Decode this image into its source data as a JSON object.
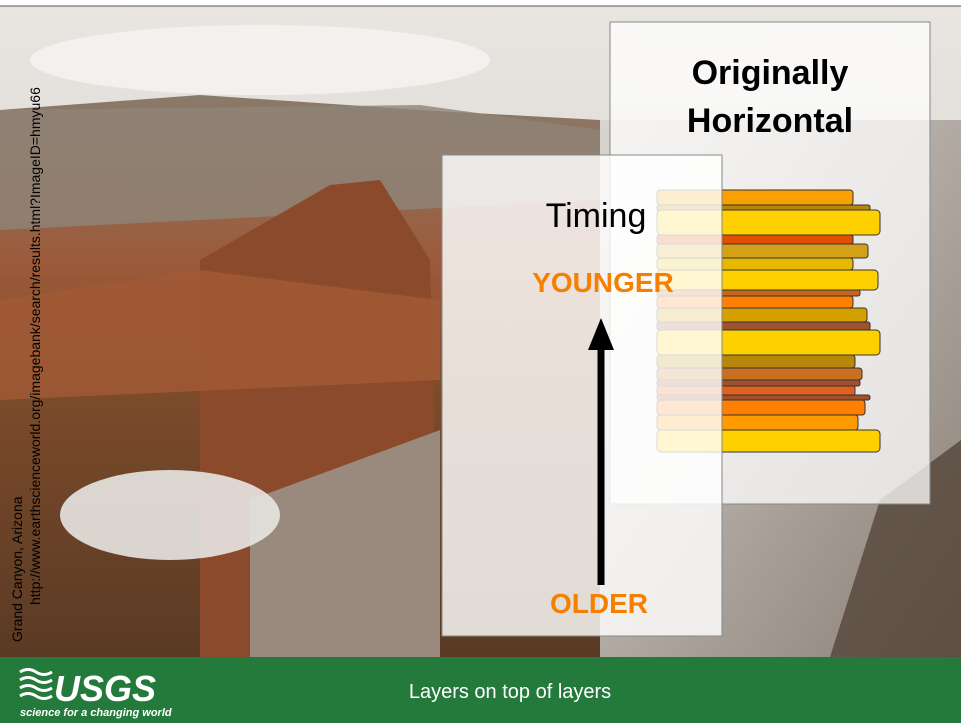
{
  "slide": {
    "title_lines": [
      "Originally",
      "Horizontal"
    ],
    "label": "Timing",
    "top_label": "YOUNGER",
    "bottom_label": "OLDER",
    "photo_caption": "Grand Canyon, Arizona",
    "photo_url": "http://www.earthscienceworld.org/imagebank/search/results.html?ImageID=hmyu66",
    "footer": {
      "logo": "USGS",
      "tagline": "science for a changing world",
      "title": "Layers on top of layers"
    }
  }
}
